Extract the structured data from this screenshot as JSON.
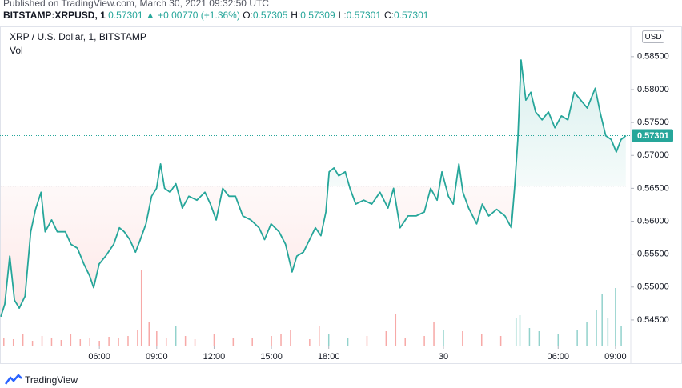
{
  "header": {
    "published": "Published on TradingView.com, March 30, 2021 09:32:50 UTC",
    "symbol": "BITSTAMP:XRPUSD, 1",
    "price": "0.57301",
    "change": "▲ +0.00770 (+1.36%)",
    "ohlc": [
      {
        "label": "O:",
        "value": "0.57305"
      },
      {
        "label": "H:",
        "value": "0.57309"
      },
      {
        "label": "L:",
        "value": "0.57301"
      },
      {
        "label": "C:",
        "value": "0.57301"
      }
    ]
  },
  "chart_data": {
    "type": "baseline",
    "title": "XRP / U.S. Dollar, 1, BITSTAMP",
    "volume_label": "Vol",
    "currency": "USD",
    "up_color": "#26a69a",
    "down_color": "#ef5350",
    "baseline": 0.5653,
    "grid": false,
    "x": [
      0.84,
      1.05,
      1.31,
      1.56,
      1.81,
      2.11,
      2.41,
      2.66,
      2.95,
      3.16,
      3.5,
      3.8,
      4.22,
      4.51,
      4.85,
      5.19,
      5.49,
      5.7,
      5.99,
      6.33,
      6.75,
      7.05,
      7.3,
      7.59,
      7.89,
      8.14,
      8.44,
      8.73,
      8.99,
      9.2,
      9.41,
      9.7,
      10.0,
      10.34,
      10.68,
      11.1,
      11.52,
      11.81,
      12.11,
      12.45,
      12.78,
      13.12,
      13.5,
      13.92,
      14.35,
      14.64,
      14.98,
      15.4,
      15.74,
      16.08,
      16.33,
      16.67,
      17.0,
      17.3,
      17.59,
      17.85,
      18.02,
      18.27,
      18.52,
      18.86,
      19.11,
      19.41,
      19.83,
      20.25,
      20.68,
      21.1,
      21.39,
      21.73,
      22.15,
      22.57,
      23.0,
      23.33,
      23.67,
      23.92,
      24.26,
      24.51,
      24.81,
      25.02,
      25.32,
      25.74,
      26.03,
      26.37,
      26.79,
      27.22,
      27.55,
      27.72,
      27.89,
      28.06,
      28.31,
      28.57,
      28.82,
      29.16,
      29.49,
      29.83,
      30.17,
      30.51,
      30.84,
      31.18,
      31.52,
      31.94,
      32.19,
      32.49,
      32.78,
      33.04,
      33.29,
      33.54
    ],
    "values": [
      0.5455,
      0.5474,
      0.5547,
      0.548,
      0.5468,
      0.5486,
      0.5584,
      0.5618,
      0.5644,
      0.5584,
      0.5602,
      0.5584,
      0.5584,
      0.5565,
      0.5559,
      0.5535,
      0.5517,
      0.5499,
      0.5535,
      0.5547,
      0.5565,
      0.559,
      0.5584,
      0.5572,
      0.5553,
      0.5572,
      0.5596,
      0.5638,
      0.565,
      0.5687,
      0.565,
      0.5644,
      0.5657,
      0.562,
      0.5638,
      0.5632,
      0.5644,
      0.5626,
      0.5602,
      0.565,
      0.5638,
      0.5638,
      0.5608,
      0.5602,
      0.559,
      0.5572,
      0.5596,
      0.5584,
      0.5565,
      0.5523,
      0.5547,
      0.5553,
      0.5572,
      0.559,
      0.5578,
      0.5614,
      0.5675,
      0.5681,
      0.5669,
      0.5675,
      0.565,
      0.5626,
      0.5632,
      0.5626,
      0.5644,
      0.562,
      0.565,
      0.559,
      0.5608,
      0.5608,
      0.5614,
      0.565,
      0.5632,
      0.5675,
      0.5638,
      0.5626,
      0.5687,
      0.5644,
      0.562,
      0.5596,
      0.5626,
      0.5608,
      0.5618,
      0.5608,
      0.559,
      0.565,
      0.5724,
      0.5845,
      0.5784,
      0.5796,
      0.5766,
      0.5754,
      0.5766,
      0.5742,
      0.576,
      0.5754,
      0.5796,
      0.5784,
      0.5772,
      0.5802,
      0.5766,
      0.573,
      0.5724,
      0.5705,
      0.5724,
      0.573
    ],
    "last_value": 0.57301,
    "last_label": "0.57301",
    "xlim": [
      0.8,
      33.8
    ],
    "xticks": [
      {
        "value": 6,
        "label": "06:00"
      },
      {
        "value": 9,
        "label": "09:00"
      },
      {
        "value": 12,
        "label": "12:00"
      },
      {
        "value": 15,
        "label": "15:00"
      },
      {
        "value": 18,
        "label": "18:00"
      },
      {
        "value": 24,
        "label": "30"
      },
      {
        "value": 30,
        "label": "06:00"
      },
      {
        "value": 33,
        "label": "09:00"
      }
    ],
    "ylim": [
      0.5411,
      0.5896
    ],
    "yticks": [
      {
        "value": 0.545,
        "label": "0.54500"
      },
      {
        "value": 0.55,
        "label": "0.55000"
      },
      {
        "value": 0.555,
        "label": "0.55500"
      },
      {
        "value": 0.56,
        "label": "0.56000"
      },
      {
        "value": 0.565,
        "label": "0.56500"
      },
      {
        "value": 0.57,
        "label": "0.57000"
      },
      {
        "value": 0.575,
        "label": "0.57500"
      },
      {
        "value": 0.58,
        "label": "0.58000"
      },
      {
        "value": 0.585,
        "label": "0.58500"
      }
    ],
    "volume": {
      "vlim": [
        0,
        100
      ],
      "x": [
        1,
        1.5,
        2,
        2.5,
        3,
        3.5,
        4,
        4.5,
        5,
        5.5,
        6,
        6.5,
        7,
        7.5,
        8,
        8.2,
        8.6,
        9,
        9.5,
        10,
        10.5,
        11,
        12,
        13,
        14,
        15,
        15.5,
        16,
        17,
        17.5,
        18,
        19,
        20,
        21,
        21.5,
        22,
        23,
        23.5,
        24,
        25,
        26,
        27,
        27.8,
        28,
        28.5,
        29,
        30,
        31,
        31.5,
        32,
        32.3,
        32.6,
        33,
        33.3
      ],
      "values": [
        10,
        8,
        15,
        6,
        12,
        9,
        7,
        14,
        8,
        10,
        6,
        11,
        9,
        12,
        20,
        95,
        30,
        18,
        10,
        25,
        12,
        8,
        15,
        10,
        9,
        12,
        14,
        20,
        8,
        25,
        15,
        10,
        12,
        18,
        40,
        10,
        12,
        30,
        20,
        18,
        15,
        12,
        35,
        38,
        22,
        18,
        15,
        20,
        30,
        45,
        65,
        35,
        72,
        25
      ]
    }
  },
  "footer": {
    "brand": "TradingView"
  }
}
